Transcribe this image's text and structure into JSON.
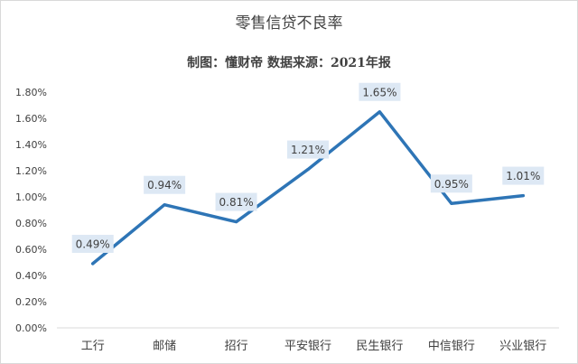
{
  "chart_data": {
    "type": "line",
    "title": "零售信贷不良率",
    "subtitle": "制图：懂财帝  数据来源：2021年报",
    "categories": [
      "工行",
      "邮储",
      "招行",
      "平安银行",
      "民生银行",
      "中信银行",
      "兴业银行"
    ],
    "series": [
      {
        "values": [
          0.49,
          0.94,
          0.81,
          1.21,
          1.65,
          0.95,
          1.01
        ],
        "labels": [
          "0.49%",
          "0.94%",
          "0.81%",
          "1.21%",
          "1.65%",
          "0.95%",
          "1.01%"
        ]
      }
    ],
    "yticks": [
      "0.00%",
      "0.20%",
      "0.40%",
      "0.60%",
      "0.80%",
      "1.00%",
      "1.20%",
      "1.40%",
      "1.60%",
      "1.80%"
    ],
    "ylim": [
      0,
      1.8
    ],
    "grid": false,
    "legend": "none",
    "colors": {
      "line": "#2e75b6",
      "label_bg": "#dde8f4",
      "text": "#404040",
      "axis": "#d9d9d9"
    }
  }
}
